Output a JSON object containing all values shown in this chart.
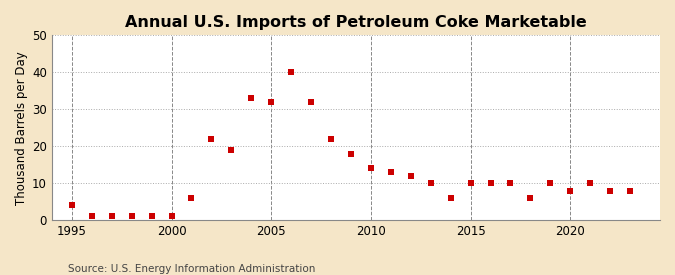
{
  "title": "Annual U.S. Imports of Petroleum Coke Marketable",
  "ylabel": "Thousand Barrels per Day",
  "source": "Source: U.S. Energy Information Administration",
  "background_color": "#f5e6c8",
  "plot_bg_color": "#ffffff",
  "marker_color": "#cc0000",
  "years": [
    1995,
    1996,
    1997,
    1998,
    1999,
    2000,
    2001,
    2002,
    2003,
    2004,
    2005,
    2006,
    2007,
    2008,
    2009,
    2010,
    2011,
    2012,
    2013,
    2014,
    2015,
    2016,
    2017,
    2018,
    2019,
    2020,
    2021,
    2022,
    2023
  ],
  "values": [
    4,
    1,
    1,
    1,
    1,
    1,
    6,
    22,
    19,
    33,
    32,
    40,
    32,
    22,
    18,
    14,
    13,
    12,
    10,
    6,
    10,
    10,
    10,
    6,
    10,
    8,
    10,
    8,
    8
  ],
  "ylim": [
    0,
    50
  ],
  "yticks": [
    0,
    10,
    20,
    30,
    40,
    50
  ],
  "xlim": [
    1994.0,
    2024.5
  ],
  "xticks": [
    1995,
    2000,
    2005,
    2010,
    2015,
    2020
  ],
  "title_fontsize": 11.5,
  "ylabel_fontsize": 8.5,
  "source_fontsize": 7.5,
  "tick_fontsize": 8.5,
  "hgrid_color": "#aaaaaa",
  "vgrid_color": "#888888",
  "marker_size": 4
}
